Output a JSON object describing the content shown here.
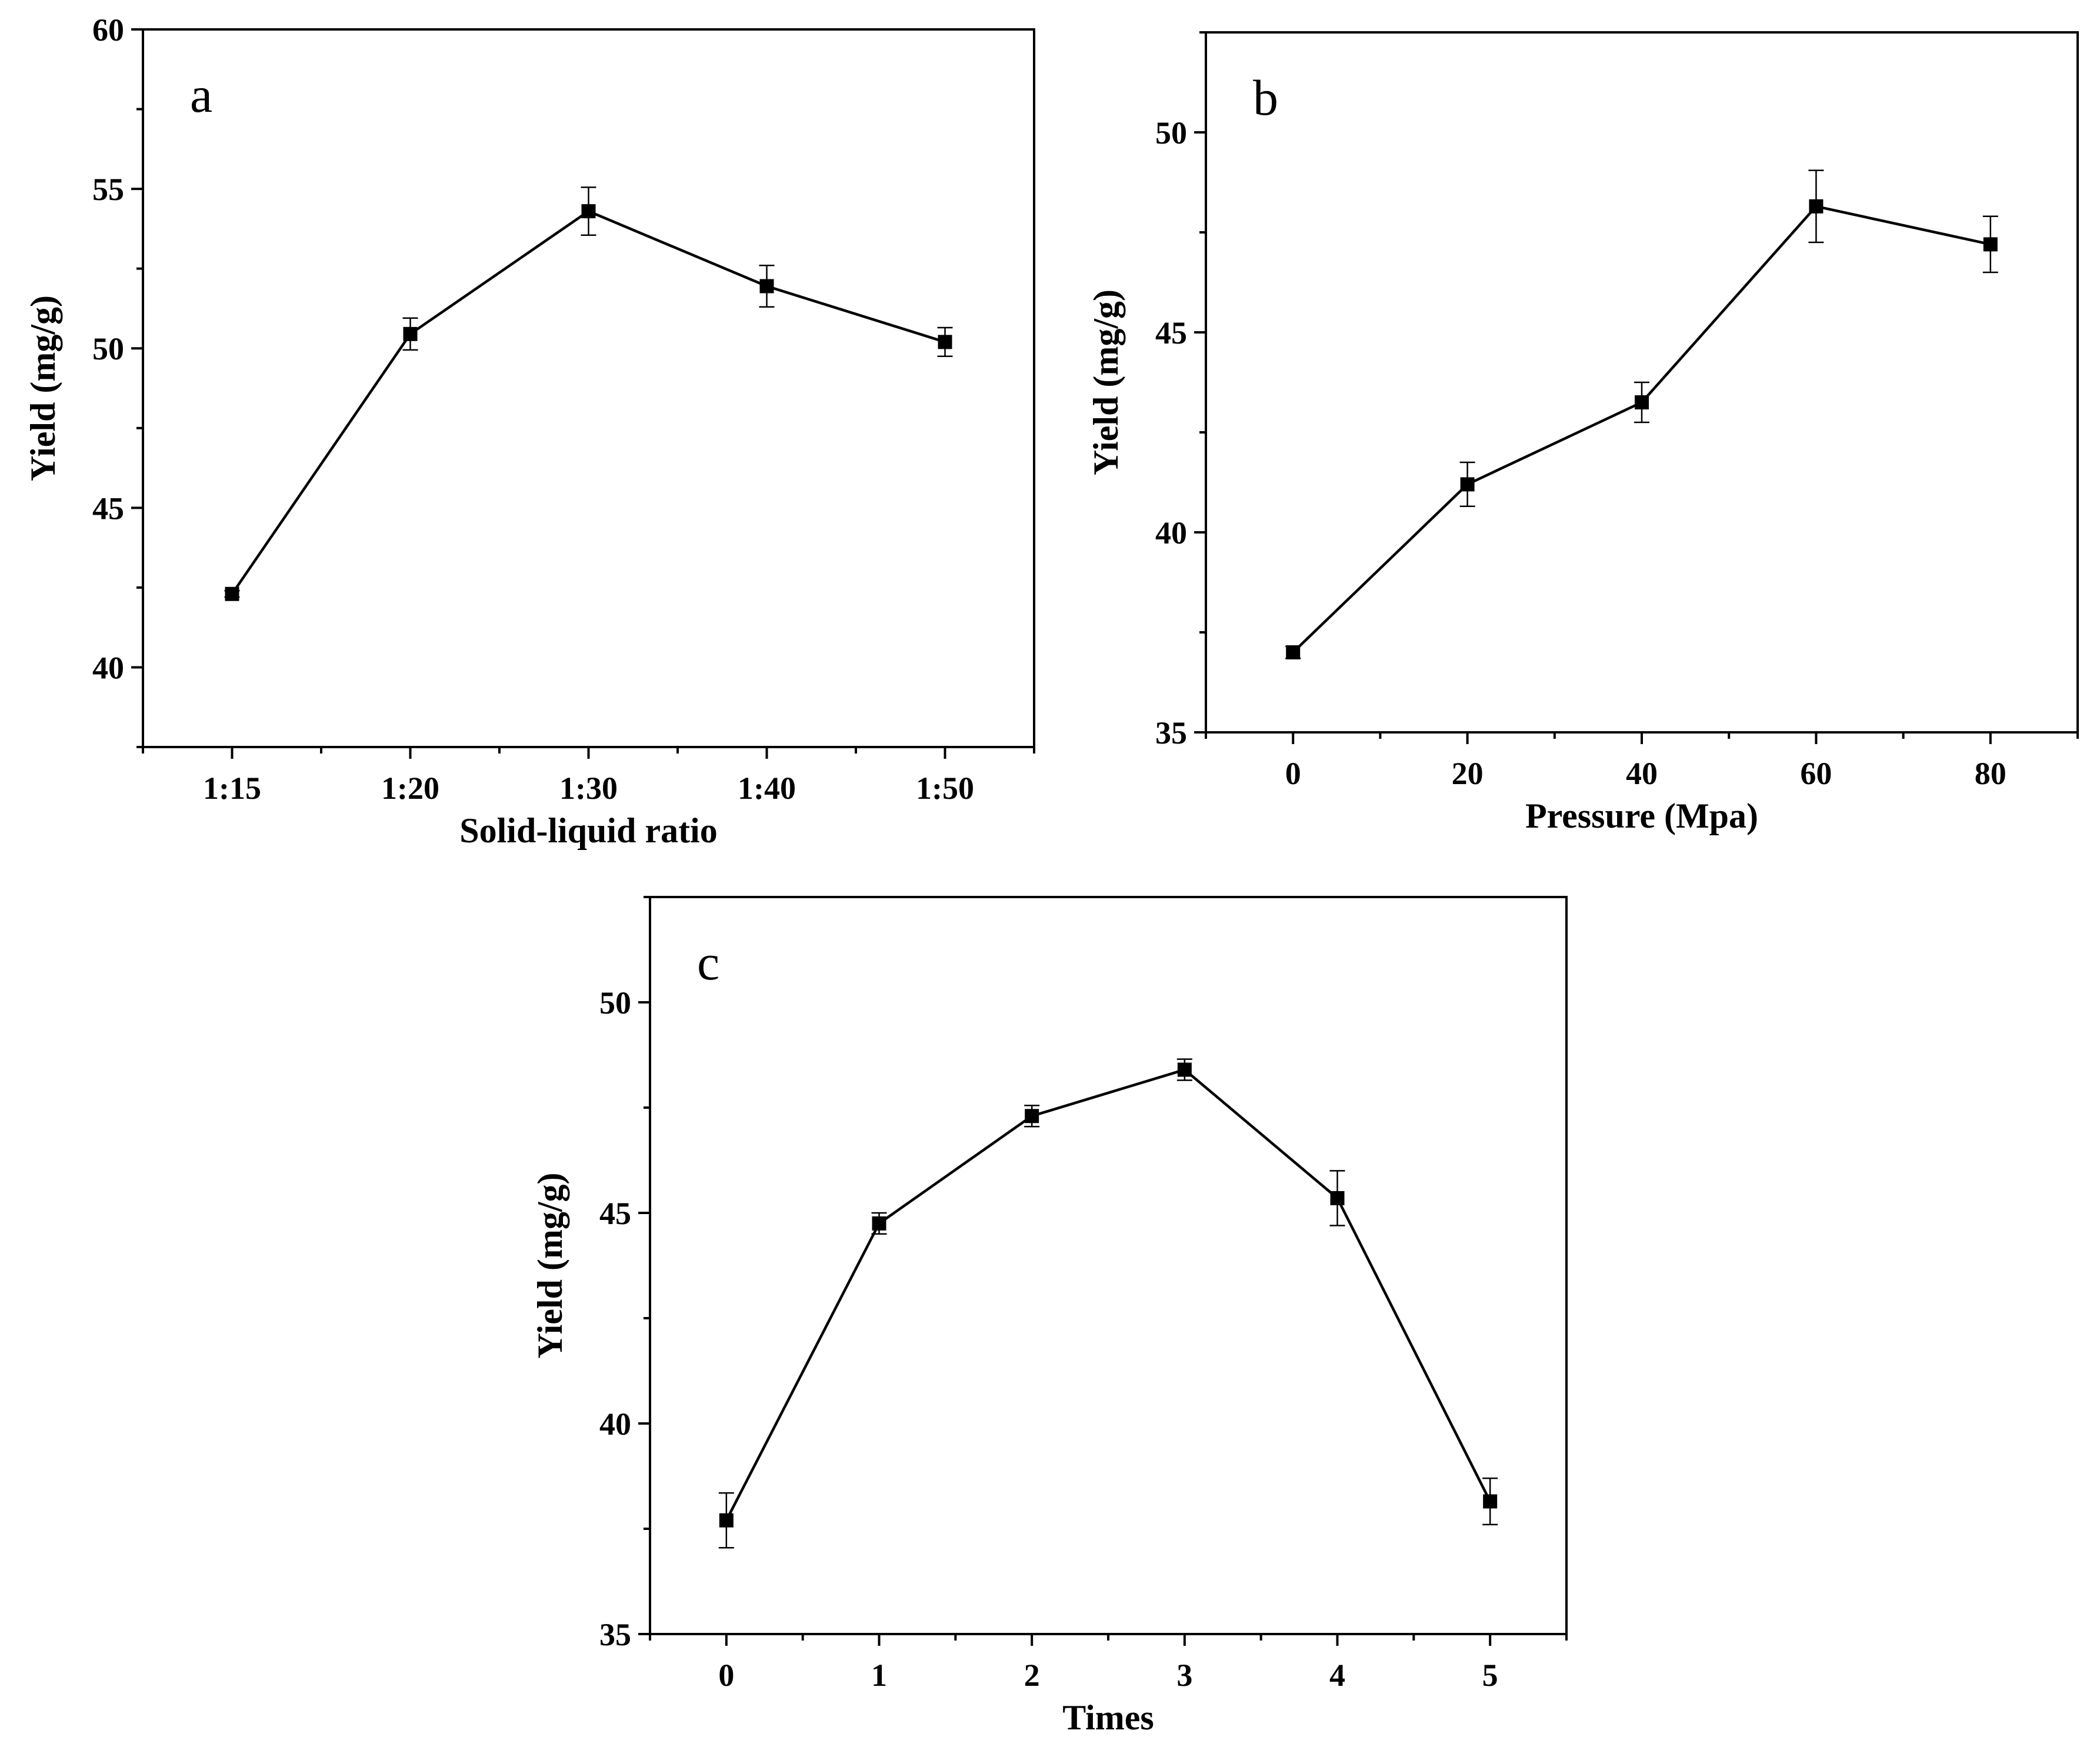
{
  "colors": {
    "ink": "#000000",
    "background": "#ffffff"
  },
  "chart_data": [
    {
      "id": "a",
      "type": "line",
      "panel_label": "a",
      "xlabel": "Solid-liquid ratio",
      "ylabel": "Yield (mg/g)",
      "categories": [
        "1:15",
        "1:20",
        "1:30",
        "1:40",
        "1:50"
      ],
      "values": [
        42.3,
        50.45,
        54.3,
        51.95,
        50.2
      ],
      "errors": [
        0.1,
        0.5,
        0.75,
        0.65,
        0.45
      ],
      "xlim": [
        -0.5,
        4.5
      ],
      "ylim": [
        37.5,
        60
      ],
      "yticks": [
        40,
        45,
        50,
        55,
        60
      ],
      "marker": "square",
      "legend": "none",
      "grid": false
    },
    {
      "id": "b",
      "type": "line",
      "panel_label": "b",
      "xlabel": "Pressure (Mpa)",
      "ylabel": "Yield (mg/g)",
      "x": [
        0,
        20,
        40,
        60,
        80
      ],
      "values": [
        37.0,
        41.2,
        43.25,
        48.15,
        47.2
      ],
      "errors": [
        0.15,
        0.55,
        0.5,
        0.9,
        0.7
      ],
      "xlim": [
        -10,
        90
      ],
      "ylim": [
        35,
        52.5
      ],
      "xticks": [
        0,
        20,
        40,
        60,
        80
      ],
      "yticks": [
        35,
        40,
        45,
        50
      ],
      "marker": "square",
      "legend": "none",
      "grid": false
    },
    {
      "id": "c",
      "type": "line",
      "panel_label": "c",
      "xlabel": "Times",
      "ylabel": "Yield (mg/g)",
      "x": [
        0,
        1,
        2,
        3,
        4,
        5
      ],
      "values": [
        37.7,
        44.75,
        47.3,
        48.4,
        45.35,
        38.15
      ],
      "errors": [
        0.65,
        0.25,
        0.25,
        0.25,
        0.65,
        0.55
      ],
      "xlim": [
        -0.5,
        5.5
      ],
      "ylim": [
        35,
        52.5
      ],
      "xticks": [
        0,
        1,
        2,
        3,
        4,
        5
      ],
      "yticks": [
        35,
        40,
        45,
        50
      ],
      "marker": "square",
      "legend": "none",
      "grid": false
    }
  ]
}
